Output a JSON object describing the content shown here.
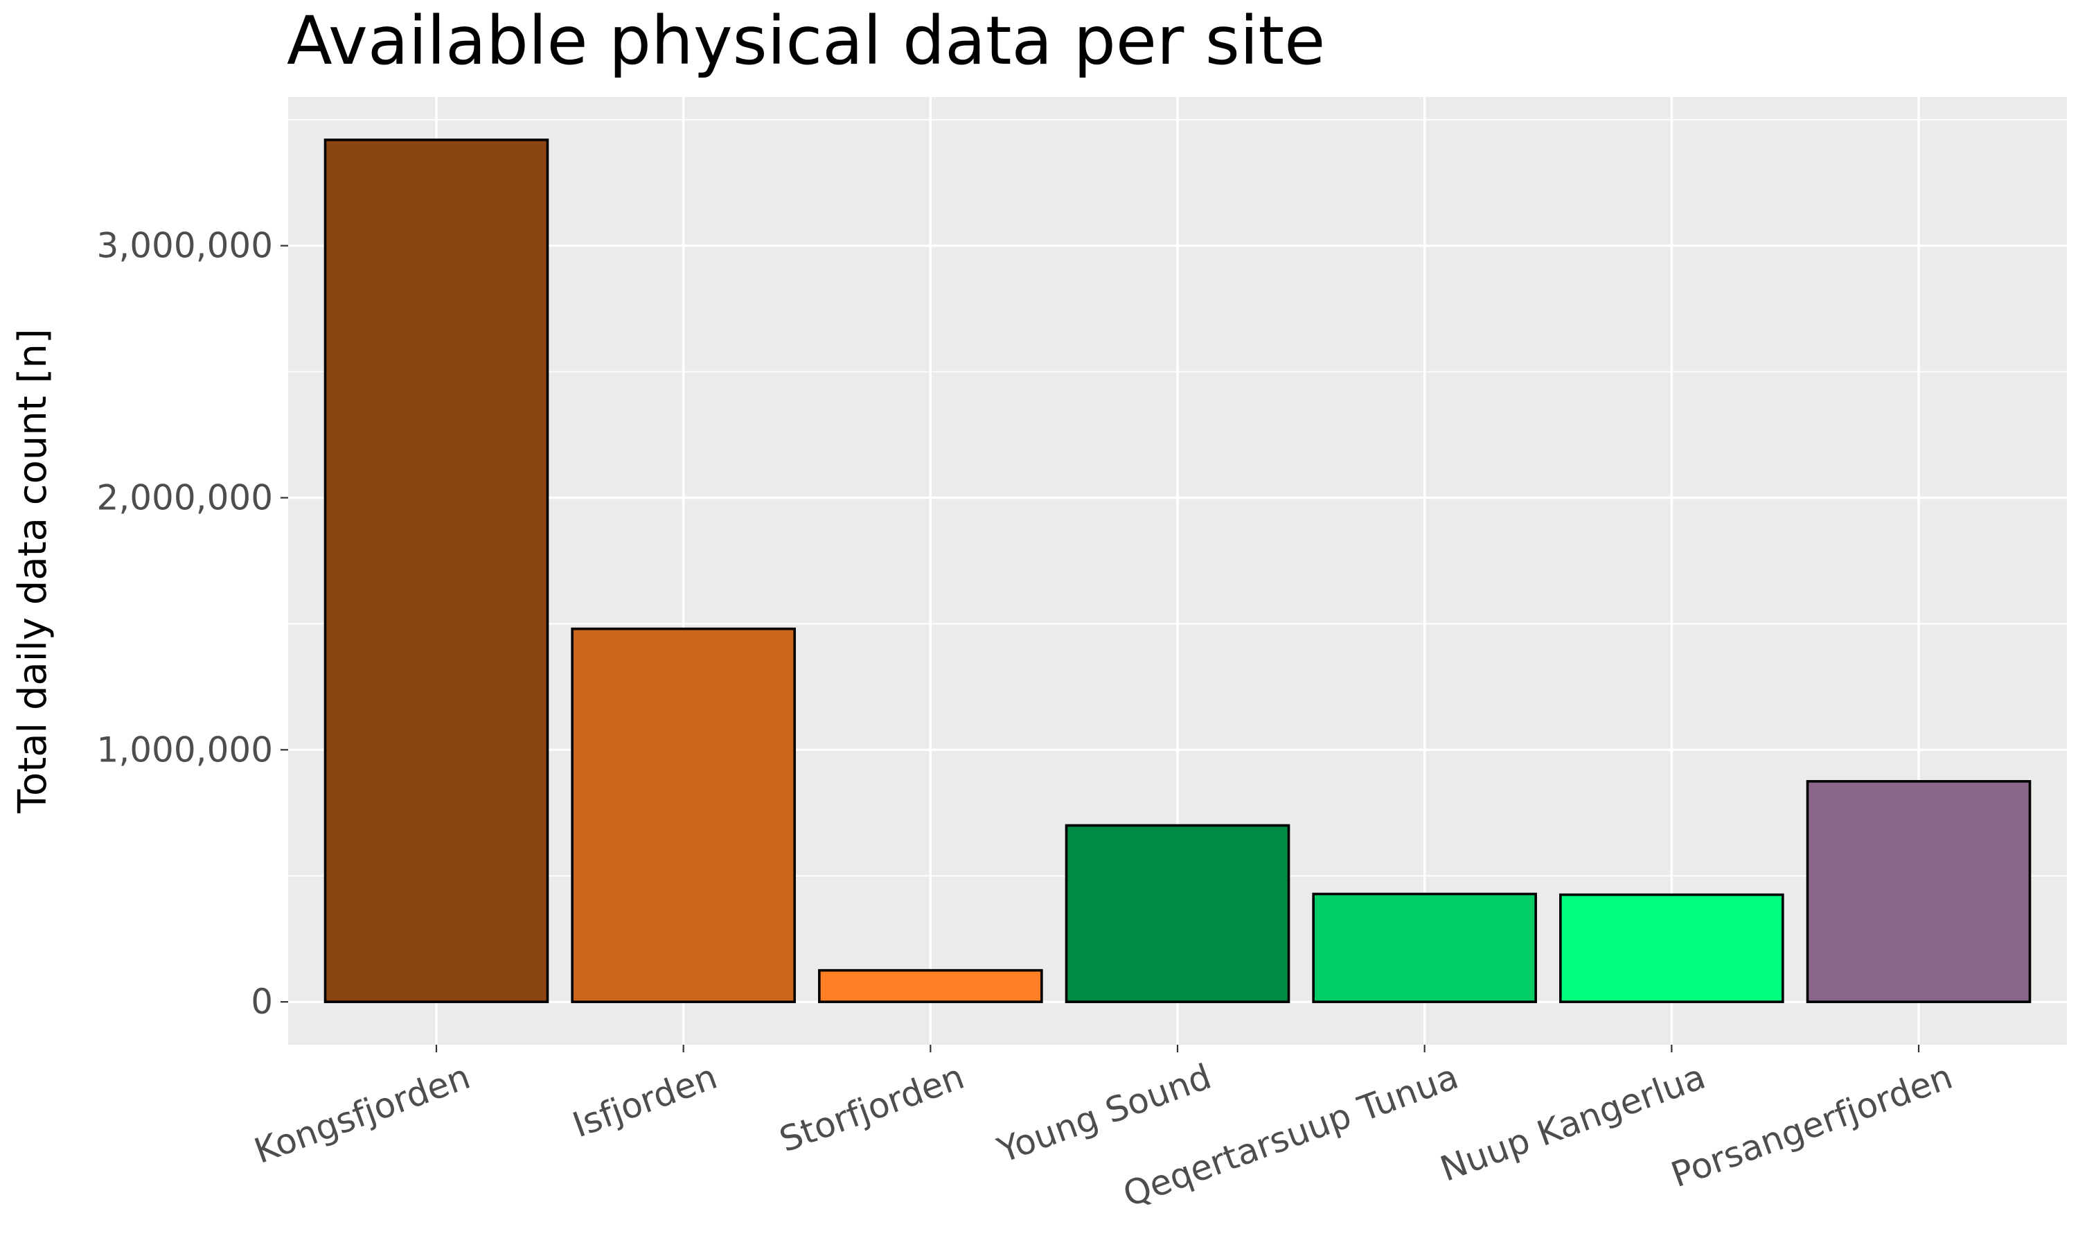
{
  "chart_data": {
    "type": "bar",
    "title": "Available physical data per site",
    "xlabel": "",
    "ylabel": "Total daily data count [n]",
    "categories": [
      "Kongsfjorden",
      "Isfjorden",
      "Storfjorden",
      "Young Sound",
      "Qeqertarsuup Tunua",
      "Nuup Kangerlua",
      "Porsangerfjorden"
    ],
    "values": [
      3420000,
      1480000,
      125000,
      700000,
      428000,
      425000,
      875000
    ],
    "colors": [
      "#8B4513",
      "#CD661D",
      "#FF7F24",
      "#008B45",
      "#00CD66",
      "#00FF7F",
      "#8B668B"
    ],
    "ylim": [
      -170000,
      3590000
    ],
    "yticks": [
      0,
      1000000,
      2000000,
      3000000
    ],
    "ytick_labels": [
      "0",
      "1,000,000",
      "2,000,000",
      "3,000,000"
    ],
    "grid": true,
    "legend": "none",
    "panel_background": "#EBEBEB",
    "bar_outline": "#000000"
  }
}
